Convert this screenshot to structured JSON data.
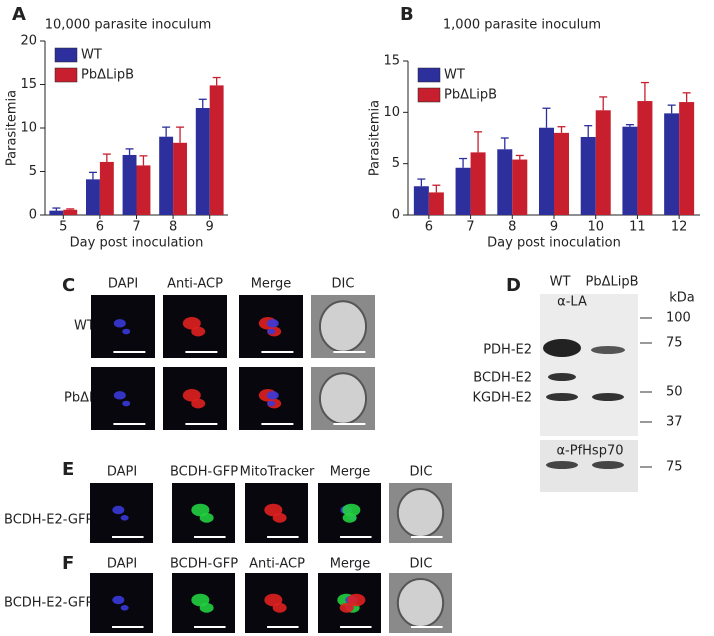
{
  "chart_data": [
    {
      "type": "bar",
      "label": "A",
      "title": "10,000 parasite inoculum",
      "xlabel": "Day post inoculation",
      "ylabel": "Parasitemia",
      "categories": [
        5,
        6,
        7,
        8,
        9
      ],
      "series": [
        {
          "name": "WT",
          "color": "#2c2f9c",
          "values": [
            0.5,
            4.1,
            6.9,
            9.0,
            12.3
          ],
          "errors": [
            0.3,
            0.8,
            0.7,
            1.1,
            1.0
          ]
        },
        {
          "name": "PbΔLipB",
          "color": "#c71f2e",
          "values": [
            0.6,
            6.1,
            5.7,
            8.3,
            14.9
          ],
          "errors": [
            0.1,
            0.9,
            1.1,
            1.8,
            0.9
          ]
        }
      ],
      "ylim": [
        0,
        20
      ],
      "yticks": [
        0,
        5,
        10,
        15,
        20
      ],
      "legend": "upper left"
    },
    {
      "type": "bar",
      "label": "B",
      "title": "1,000 parasite inoculum",
      "xlabel": "Day post inoculation",
      "ylabel": "Parasitemia",
      "categories": [
        6,
        7,
        8,
        9,
        10,
        11,
        12
      ],
      "series": [
        {
          "name": "WT",
          "color": "#2c2f9c",
          "values": [
            2.8,
            4.6,
            6.4,
            8.5,
            7.6,
            8.6,
            9.9
          ],
          "errors": [
            0.7,
            0.9,
            1.1,
            1.9,
            1.1,
            0.2,
            0.8
          ]
        },
        {
          "name": "PbΔLipB",
          "color": "#c71f2e",
          "values": [
            2.2,
            6.1,
            5.4,
            8.0,
            10.2,
            11.1,
            11.0
          ],
          "errors": [
            0.7,
            2.0,
            0.4,
            0.6,
            1.3,
            1.8,
            0.9
          ]
        }
      ],
      "ylim": [
        0,
        15
      ],
      "yticks": [
        0,
        5,
        10,
        15
      ],
      "legend": "upper left"
    }
  ],
  "panel_c": {
    "label": "C",
    "columns": [
      "DAPI",
      "Anti-ACP",
      "Merge",
      "DIC"
    ],
    "rows": [
      "WT",
      "PbΔLipB"
    ]
  },
  "panel_d": {
    "label": "D",
    "lanes": [
      "WT",
      "PbΔLipB"
    ],
    "antibody_top": "α-LA",
    "antibody_bottom": "α-PfHsp70",
    "unit": "kDa",
    "markers_top": [
      "100",
      "75",
      "50",
      "37"
    ],
    "markers_bottom": [
      "75"
    ],
    "bands": [
      "PDH-E2",
      "BCDH-E2",
      "KGDH-E2"
    ]
  },
  "panel_e": {
    "label": "E",
    "columns": [
      "DAPI",
      "BCDH-GFP",
      "MitoTracker",
      "Merge",
      "DIC"
    ],
    "row": "BCDH-E2-GFP"
  },
  "panel_f": {
    "label": "F",
    "columns": [
      "DAPI",
      "BCDH-GFP",
      "Anti-ACP",
      "Merge",
      "DIC"
    ],
    "row": "BCDH-E2-GFP"
  }
}
